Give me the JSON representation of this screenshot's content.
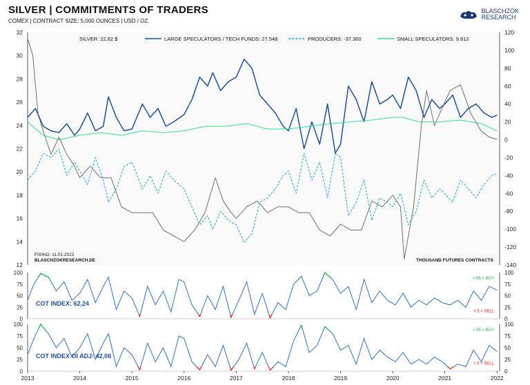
{
  "header": {
    "title": "SILVER | COMMITMENTS OF TRADERS",
    "subtitle": "COMEX | CONTRACT SIZE: 5,000 OUNCES | USD / OZ.",
    "logo_line1": "BLASCHZOK",
    "logo_line2": "RESEARCH"
  },
  "colors": {
    "silver": "#6e6e6e",
    "large_specs": "#1f4e9c",
    "producers": "#1fa3d8",
    "small_specs": "#34e08a",
    "buy": "#22b14c",
    "sell": "#e52121",
    "index_line": "#2f6fc6"
  },
  "chart_data": [
    {
      "type": "line",
      "legend": [
        "SILVER: 22,82 $",
        "LARGE SPECULATORS / TECH FUNDS: 27.548",
        "PRODUCERS: -37.360",
        "SMALL SPECULATORS: 9.812"
      ],
      "left_axis": {
        "ticks": [
          12,
          14,
          16,
          18,
          20,
          22,
          24,
          26,
          28,
          30,
          32
        ],
        "range": [
          12,
          32
        ],
        "unit": "USD / OZ."
      },
      "right_axis": {
        "ticks": [
          -140,
          -120,
          -100,
          -80,
          -60,
          -40,
          -20,
          0,
          20,
          40,
          60,
          80,
          100,
          120
        ],
        "range": [
          -140,
          120
        ],
        "label": "THOUSAND FUTURES CONTRACTS"
      },
      "x_ticks": [
        "2013",
        "2014",
        "2015",
        "2016",
        "2017",
        "2018",
        "2019",
        "2020",
        "2021",
        "2022"
      ],
      "x_range": [
        2013,
        2022.05
      ],
      "note_fixing": "FIXING:  11.01.2022",
      "note_source": "BLASCHZOKRESEARCH.DE",
      "axis_label_right": "THOUSAND FUTURES CONTRACTS",
      "series": [
        {
          "name": "SILVER",
          "axis": "left",
          "style": "solid",
          "x": [
            2013.0,
            2013.1,
            2013.2,
            2013.3,
            2013.45,
            2013.6,
            2013.75,
            2013.9,
            2014.0,
            2014.2,
            2014.4,
            2014.6,
            2014.8,
            2015.0,
            2015.2,
            2015.4,
            2015.6,
            2015.8,
            2016.0,
            2016.2,
            2016.4,
            2016.6,
            2016.75,
            2016.9,
            2017.0,
            2017.2,
            2017.4,
            2017.6,
            2017.8,
            2018.0,
            2018.2,
            2018.4,
            2018.6,
            2018.8,
            2019.0,
            2019.2,
            2019.4,
            2019.6,
            2019.8,
            2020.0,
            2020.15,
            2020.22,
            2020.4,
            2020.55,
            2020.65,
            2020.8,
            2021.0,
            2021.1,
            2021.3,
            2021.5,
            2021.7,
            2021.85,
            2022.0
          ],
          "y": [
            31.5,
            30,
            25,
            23.5,
            21.5,
            23,
            21.5,
            20.5,
            19.5,
            20.5,
            19.5,
            19.5,
            17,
            16.5,
            16.5,
            16.5,
            15,
            14.5,
            14,
            15,
            16.5,
            19.5,
            17.5,
            16.5,
            16,
            17,
            17.5,
            16.5,
            17,
            17,
            16.5,
            16.5,
            15,
            14.5,
            15.5,
            15,
            15,
            17.5,
            17,
            18,
            17,
            12.5,
            17,
            24,
            27,
            24,
            26,
            27,
            27.5,
            25,
            23.5,
            23,
            22.8
          ]
        },
        {
          "name": "LARGE SPECULATORS / TECH FUNDS",
          "axis": "right",
          "style": "solid",
          "x": [
            2013.0,
            2013.15,
            2013.3,
            2013.45,
            2013.6,
            2013.75,
            2013.9,
            2014.0,
            2014.15,
            2014.3,
            2014.45,
            2014.55,
            2014.7,
            2014.85,
            2015.0,
            2015.2,
            2015.35,
            2015.5,
            2015.65,
            2015.8,
            2016.0,
            2016.15,
            2016.3,
            2016.45,
            2016.55,
            2016.7,
            2016.85,
            2017.0,
            2017.15,
            2017.3,
            2017.45,
            2017.6,
            2017.75,
            2017.9,
            2018.0,
            2018.15,
            2018.3,
            2018.45,
            2018.6,
            2018.75,
            2018.9,
            2019.0,
            2019.15,
            2019.3,
            2019.45,
            2019.6,
            2019.75,
            2019.9,
            2020.0,
            2020.15,
            2020.3,
            2020.45,
            2020.6,
            2020.75,
            2020.9,
            2021.0,
            2021.15,
            2021.3,
            2021.45,
            2021.6,
            2021.75,
            2021.9,
            2022.0
          ],
          "y": [
            25,
            35,
            15,
            10,
            8,
            18,
            5,
            12,
            30,
            10,
            15,
            48,
            25,
            10,
            12,
            40,
            25,
            35,
            15,
            20,
            28,
            45,
            70,
            60,
            75,
            55,
            65,
            70,
            90,
            80,
            50,
            40,
            30,
            15,
            10,
            35,
            -10,
            20,
            -5,
            40,
            -15,
            -5,
            60,
            45,
            20,
            65,
            40,
            45,
            50,
            35,
            70,
            55,
            25,
            45,
            35,
            40,
            50,
            25,
            35,
            40,
            30,
            25,
            27.5
          ]
        },
        {
          "name": "PRODUCERS",
          "axis": "right",
          "style": "dashed",
          "x": [
            2013.0,
            2013.15,
            2013.3,
            2013.45,
            2013.6,
            2013.75,
            2013.9,
            2014.0,
            2014.15,
            2014.3,
            2014.45,
            2014.55,
            2014.7,
            2014.85,
            2015.0,
            2015.2,
            2015.35,
            2015.5,
            2015.65,
            2015.8,
            2016.0,
            2016.15,
            2016.3,
            2016.45,
            2016.55,
            2016.7,
            2016.85,
            2017.0,
            2017.15,
            2017.3,
            2017.45,
            2017.6,
            2017.75,
            2017.9,
            2018.0,
            2018.15,
            2018.3,
            2018.45,
            2018.6,
            2018.75,
            2018.9,
            2019.0,
            2019.15,
            2019.3,
            2019.45,
            2019.6,
            2019.75,
            2019.9,
            2020.0,
            2020.15,
            2020.3,
            2020.45,
            2020.6,
            2020.75,
            2020.9,
            2021.0,
            2021.15,
            2021.3,
            2021.45,
            2021.6,
            2021.75,
            2021.9,
            2022.0
          ],
          "y": [
            -45,
            -35,
            -15,
            -20,
            -10,
            -40,
            -25,
            -35,
            -50,
            -20,
            -45,
            -70,
            -55,
            -30,
            -25,
            -55,
            -40,
            -60,
            -35,
            -45,
            -55,
            -75,
            -95,
            -85,
            -100,
            -80,
            -90,
            -95,
            -115,
            -105,
            -70,
            -65,
            -55,
            -40,
            -35,
            -60,
            -15,
            -45,
            -25,
            -65,
            -15,
            -20,
            -85,
            -70,
            -45,
            -90,
            -65,
            -70,
            -75,
            -60,
            -95,
            -80,
            -45,
            -65,
            -55,
            -60,
            -70,
            -45,
            -55,
            -65,
            -50,
            -40,
            -37.4
          ]
        },
        {
          "name": "SMALL SPECULATORS",
          "axis": "right",
          "style": "solid",
          "x": [
            2013.0,
            2013.3,
            2013.6,
            2014.0,
            2014.4,
            2014.8,
            2015.2,
            2015.6,
            2016.0,
            2016.4,
            2016.8,
            2017.2,
            2017.6,
            2018.0,
            2018.4,
            2018.8,
            2019.2,
            2019.6,
            2020.0,
            2020.2,
            2020.5,
            2020.9,
            2021.3,
            2021.7,
            2022.0
          ],
          "y": [
            20,
            5,
            0,
            5,
            8,
            5,
            10,
            8,
            10,
            15,
            15,
            18,
            12,
            12,
            15,
            18,
            20,
            22,
            25,
            25,
            20,
            20,
            22,
            18,
            9.8
          ]
        }
      ]
    },
    {
      "type": "line",
      "label": "COT INDEX: 62,24",
      "buy_label": "> 95 = BUY",
      "sell_label": "< 5 = SELL",
      "ticks": [
        0,
        25,
        50,
        75,
        100
      ],
      "range": [
        0,
        100
      ],
      "series": [
        {
          "name": "COT INDEX",
          "x": [
            2013.0,
            2013.12,
            2013.25,
            2013.4,
            2013.55,
            2013.7,
            2013.85,
            2014.0,
            2014.15,
            2014.3,
            2014.45,
            2014.55,
            2014.7,
            2014.85,
            2015.0,
            2015.15,
            2015.3,
            2015.45,
            2015.6,
            2015.75,
            2015.9,
            2016.0,
            2016.15,
            2016.3,
            2016.45,
            2016.6,
            2016.75,
            2016.9,
            2017.05,
            2017.2,
            2017.35,
            2017.5,
            2017.65,
            2017.8,
            2017.95,
            2018.1,
            2018.25,
            2018.4,
            2018.55,
            2018.7,
            2018.85,
            2019.0,
            2019.15,
            2019.3,
            2019.45,
            2019.6,
            2019.75,
            2019.9,
            2020.05,
            2020.2,
            2020.35,
            2020.5,
            2020.65,
            2020.8,
            2020.95,
            2021.1,
            2021.25,
            2021.4,
            2021.55,
            2021.7,
            2021.85,
            2022.0
          ],
          "y": [
            40,
            75,
            98,
            90,
            60,
            80,
            40,
            55,
            85,
            35,
            70,
            90,
            20,
            60,
            45,
            5,
            70,
            30,
            60,
            15,
            85,
            80,
            30,
            5,
            50,
            20,
            70,
            3,
            40,
            80,
            10,
            55,
            2,
            35,
            20,
            75,
            92,
            50,
            60,
            100,
            85,
            55,
            70,
            20,
            85,
            35,
            60,
            40,
            30,
            55,
            25,
            40,
            30,
            45,
            35,
            30,
            40,
            25,
            60,
            40,
            70,
            62.2
          ]
        }
      ]
    },
    {
      "type": "line",
      "label": "COT INDEX OI ADJ: 42,06",
      "buy_label": "> 95 = BUY",
      "sell_label": "< 5 = SELL",
      "ticks": [
        0,
        25,
        50,
        75,
        100
      ],
      "range": [
        0,
        100
      ],
      "series": [
        {
          "name": "COT INDEX OI ADJ",
          "x": [
            2013.0,
            2013.12,
            2013.25,
            2013.4,
            2013.55,
            2013.7,
            2013.85,
            2014.0,
            2014.15,
            2014.3,
            2014.45,
            2014.55,
            2014.7,
            2014.85,
            2015.0,
            2015.15,
            2015.3,
            2015.45,
            2015.6,
            2015.75,
            2015.9,
            2016.0,
            2016.15,
            2016.3,
            2016.45,
            2016.6,
            2016.75,
            2016.9,
            2017.05,
            2017.2,
            2017.35,
            2017.5,
            2017.65,
            2017.8,
            2017.95,
            2018.1,
            2018.25,
            2018.4,
            2018.55,
            2018.7,
            2018.85,
            2019.0,
            2019.15,
            2019.3,
            2019.45,
            2019.6,
            2019.75,
            2019.9,
            2020.05,
            2020.2,
            2020.35,
            2020.5,
            2020.65,
            2020.8,
            2020.95,
            2021.1,
            2021.25,
            2021.4,
            2021.55,
            2021.7,
            2021.85,
            2022.0
          ],
          "y": [
            35,
            70,
            100,
            80,
            50,
            70,
            30,
            50,
            80,
            25,
            60,
            80,
            10,
            50,
            35,
            3,
            60,
            20,
            50,
            10,
            75,
            70,
            20,
            3,
            35,
            10,
            55,
            2,
            25,
            60,
            5,
            40,
            2,
            20,
            10,
            65,
            98,
            40,
            55,
            95,
            80,
            45,
            55,
            15,
            70,
            25,
            45,
            30,
            20,
            40,
            15,
            25,
            15,
            30,
            20,
            5,
            15,
            10,
            45,
            20,
            55,
            42.1
          ]
        }
      ]
    }
  ]
}
